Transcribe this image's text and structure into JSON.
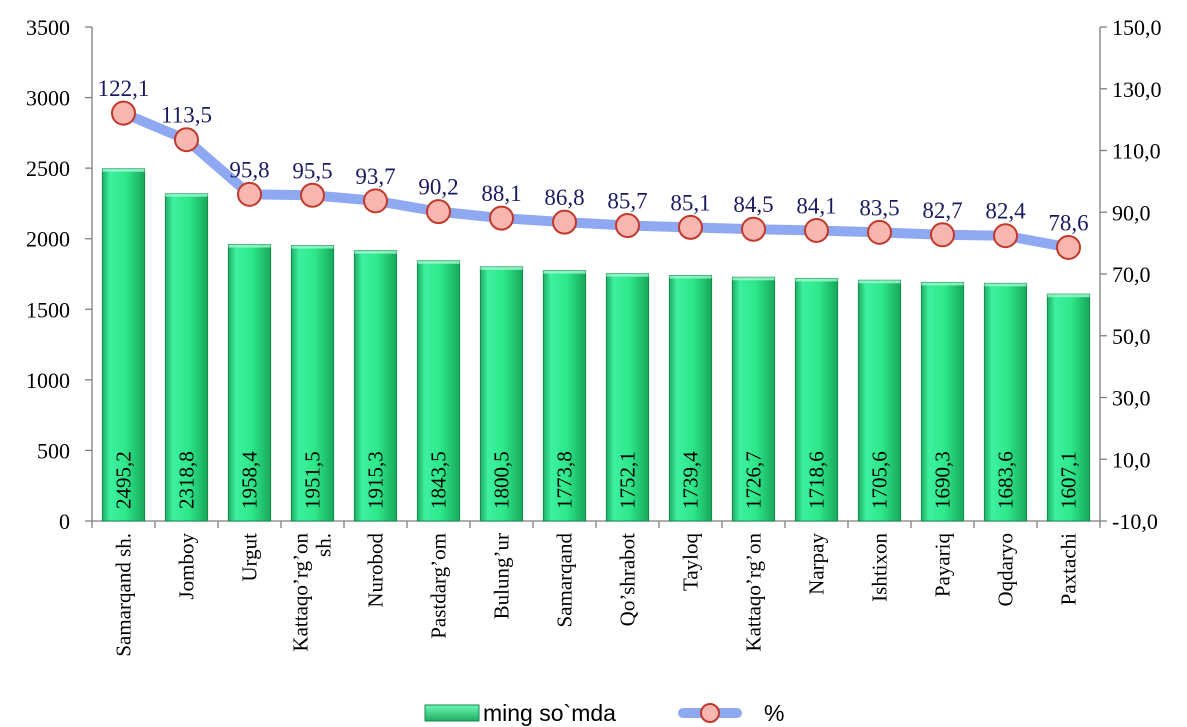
{
  "chart_data": {
    "type": "bar",
    "categories": [
      [
        "Samarqand sh."
      ],
      [
        "Jomboy"
      ],
      [
        "Urgut"
      ],
      [
        "Kattaqo’rg’on",
        "sh."
      ],
      [
        "Nurobod"
      ],
      [
        "Pastdarg’om"
      ],
      [
        "Bulung’ur"
      ],
      [
        "Samarqand"
      ],
      [
        "Qo’shrabot"
      ],
      [
        "Tayloq"
      ],
      [
        "Kattaqo’rg’on"
      ],
      [
        "Narpay"
      ],
      [
        "Ishtixon"
      ],
      [
        "Payariq"
      ],
      [
        "Oqdaryo"
      ],
      [
        "Paxtachi"
      ]
    ],
    "series": [
      {
        "name": "ming so`mda",
        "type": "bar",
        "axis": "left",
        "color": "#2ee88a",
        "values": [
          2495.2,
          2318.8,
          1958.4,
          1951.5,
          1915.3,
          1843.5,
          1800.5,
          1773.8,
          1752.1,
          1739.4,
          1726.7,
          1718.6,
          1705.6,
          1690.3,
          1683.6,
          1607.1
        ],
        "labels": [
          "2495,2",
          "2318,8",
          "1958,4",
          "1951,5",
          "1915,3",
          "1843,5",
          "1800,5",
          "1773,8",
          "1752,1",
          "1739,4",
          "1726,7",
          "1718,6",
          "1705,6",
          "1690,3",
          "1683,6",
          "1607,1"
        ]
      },
      {
        "name": "%",
        "type": "line",
        "axis": "right",
        "color": "#8ea9f2",
        "marker_fill": "#f7b7b0",
        "marker_stroke": "#c0392b",
        "values": [
          122.1,
          113.5,
          95.8,
          95.5,
          93.7,
          90.2,
          88.1,
          86.8,
          85.7,
          85.1,
          84.5,
          84.1,
          83.5,
          82.7,
          82.4,
          78.6
        ],
        "labels": [
          "122,1",
          "113,5",
          "95,8",
          "95,5",
          "93,7",
          "90,2",
          "88,1",
          "86,8",
          "85,7",
          "85,1",
          "84,5",
          "84,1",
          "83,5",
          "82,7",
          "82,4",
          "78,6"
        ]
      }
    ],
    "y_left": {
      "min": 0,
      "max": 3500,
      "ticks": [
        "0",
        "500",
        "1000",
        "1500",
        "2000",
        "2500",
        "3000",
        "3500"
      ]
    },
    "y_right": {
      "min": -10,
      "max": 150,
      "ticks": [
        "-10,0",
        "10,0",
        "30,0",
        "50,0",
        "70,0",
        "90,0",
        "110,0",
        "130,0",
        "150,0"
      ]
    },
    "legend": "bottom-center",
    "grid": false
  }
}
